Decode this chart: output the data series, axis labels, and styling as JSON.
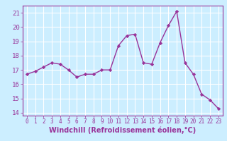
{
  "x": [
    0,
    1,
    2,
    3,
    4,
    5,
    6,
    7,
    8,
    9,
    10,
    11,
    12,
    13,
    14,
    15,
    16,
    17,
    18,
    19,
    20,
    21,
    22,
    23
  ],
  "y": [
    16.7,
    16.9,
    17.2,
    17.5,
    17.4,
    17.0,
    16.5,
    16.7,
    16.7,
    17.0,
    17.0,
    18.7,
    19.4,
    19.5,
    17.5,
    17.4,
    18.9,
    20.1,
    21.1,
    17.5,
    16.7,
    15.3,
    14.9,
    14.3
  ],
  "line_color": "#993399",
  "marker": "D",
  "marker_size": 2.2,
  "background_color": "#cceeff",
  "grid_color": "#ffffff",
  "xlabel": "Windchill (Refroidissement éolien,°C)",
  "xlim": [
    -0.5,
    23.5
  ],
  "ylim": [
    13.8,
    21.5
  ],
  "yticks": [
    14,
    15,
    16,
    17,
    18,
    19,
    20,
    21
  ],
  "xticks": [
    0,
    1,
    2,
    3,
    4,
    5,
    6,
    7,
    8,
    9,
    10,
    11,
    12,
    13,
    14,
    15,
    16,
    17,
    18,
    19,
    20,
    21,
    22,
    23
  ],
  "tick_color": "#993399",
  "tick_label_color": "#993399",
  "xlabel_color": "#993399",
  "xlabel_fontsize": 7,
  "tick_fontsize": 6.5,
  "line_width": 1.0
}
